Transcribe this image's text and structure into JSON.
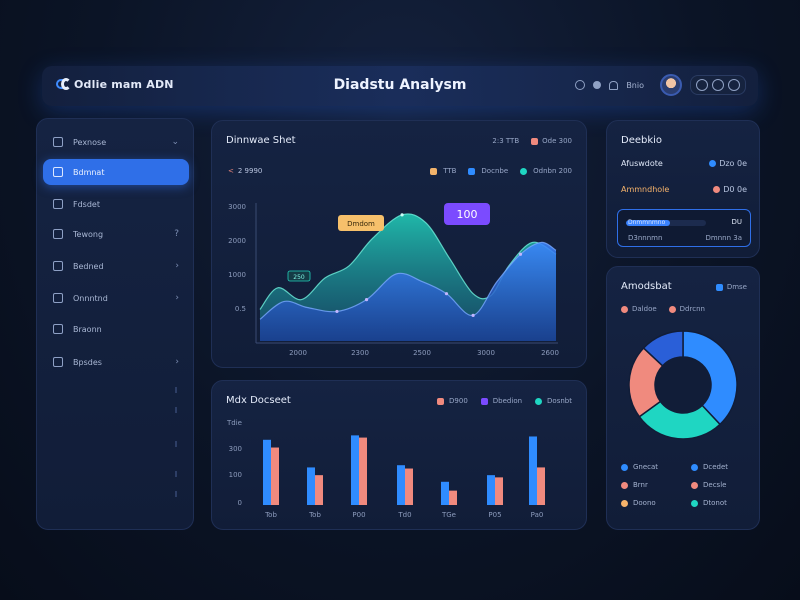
{
  "header": {
    "brand": "Odlie mam ADN",
    "title": "Diadstu Analysm",
    "tool_label": "Bnio"
  },
  "sidebar": {
    "items": [
      {
        "label": "Pexnose",
        "chevron": "⌄",
        "active": false
      },
      {
        "label": "Bdmnat",
        "chevron": "",
        "active": true
      },
      {
        "label": "Fdsdet",
        "chevron": "",
        "active": false
      },
      {
        "label": "Tewong",
        "chevron": "?",
        "active": false
      },
      {
        "label": "Bedned",
        "chevron": "›",
        "active": false
      },
      {
        "label": "Onnntnd",
        "chevron": "›",
        "active": false
      },
      {
        "label": "Braonn",
        "chevron": "",
        "active": false
      },
      {
        "label": "Bpsdes",
        "chevron": "›",
        "active": false
      }
    ]
  },
  "top_chart": {
    "title": "Dinnwae Shet",
    "header_legend": [
      {
        "label": "2:3  TTB",
        "color": "#9aa9c8"
      },
      {
        "label": "Ode 300",
        "color": "#f08a7e"
      }
    ],
    "stat": "2 9990",
    "legend": [
      {
        "label": "TTB",
        "color": "#f2b36b"
      },
      {
        "label": "Docnbe",
        "color": "#2f8cff"
      },
      {
        "label": "Odnbn 200",
        "color": "#1fd6c2"
      }
    ],
    "callout_tag": "Dmdom",
    "callout_value": "100",
    "marker_label": "250",
    "colors": {
      "blue": "#2f7df0",
      "teal": "#1fc7b4",
      "purple": "#7b4bff",
      "orange": "#f6c06b"
    }
  },
  "bottom_chart": {
    "title": "Mdx Docseet",
    "legend": [
      {
        "label": "D900",
        "color": "#f08a7e"
      },
      {
        "label": "Dbedion",
        "color": "#7b4bff"
      },
      {
        "label": "Dosnbt",
        "color": "#1fd6c2"
      }
    ]
  },
  "right_top": {
    "title": "Deebkio",
    "rows": [
      {
        "label": "Afuswdote",
        "value": "Dzo 0e",
        "label_color": "#dfe7f7",
        "dot": "#2f8cff"
      },
      {
        "label": "Ammndhole",
        "value": "D0 0e",
        "label_color": "#f6b36b",
        "dot": "#f08a7e"
      }
    ],
    "progress": {
      "value": 0.55,
      "left_text": "Dnmmnmno",
      "right_text": "DU",
      "sub_left": "D3nnnmn",
      "sub_right": "Dmnnn 3a"
    }
  },
  "right_bottom": {
    "title": "Amodsbat",
    "header_legend": "Dmse",
    "sub_legend": [
      {
        "label": "Daldoe",
        "color": "#f08a7e"
      },
      {
        "label": "Ddrcnn",
        "color": "#f08a7e"
      }
    ],
    "legend": [
      {
        "label": "Gnecat",
        "color": "#2f8cff"
      },
      {
        "label": "Dcedet",
        "color": "#2f8cff"
      },
      {
        "label": "Brnr",
        "color": "#f08a7e"
      },
      {
        "label": "Decsle",
        "color": "#f08a7e"
      },
      {
        "label": "Doono",
        "color": "#f6b36b"
      },
      {
        "label": "Dtonot",
        "color": "#1fd6c2"
      }
    ]
  },
  "chart_data": [
    {
      "type": "area",
      "title": "Dinnwae Shet",
      "x": [
        "2000",
        "2300",
        "2500",
        "3000",
        "2600"
      ],
      "ylabels": [
        "3000",
        "2000",
        "1000",
        "0.5"
      ],
      "ylim": [
        0,
        3500
      ],
      "series": [
        {
          "name": "Odnbn 200",
          "points": [
            [
              0,
              0.8
            ],
            [
              0.06,
              1.35
            ],
            [
              0.14,
              1.05
            ],
            [
              0.22,
              1.6
            ],
            [
              0.3,
              1.9
            ],
            [
              0.38,
              2.6
            ],
            [
              0.48,
              3.2
            ],
            [
              0.56,
              3.0
            ],
            [
              0.64,
              2.1
            ],
            [
              0.72,
              1.2
            ],
            [
              0.78,
              1.15
            ],
            [
              0.84,
              1.9
            ],
            [
              0.92,
              2.5
            ],
            [
              1.0,
              2.2
            ]
          ]
        },
        {
          "name": "Docnbe",
          "points": [
            [
              0,
              0.55
            ],
            [
              0.08,
              1.0
            ],
            [
              0.16,
              0.85
            ],
            [
              0.26,
              0.75
            ],
            [
              0.36,
              1.05
            ],
            [
              0.46,
              1.7
            ],
            [
              0.55,
              1.5
            ],
            [
              0.63,
              1.2
            ],
            [
              0.72,
              0.65
            ],
            [
              0.8,
              1.5
            ],
            [
              0.88,
              2.2
            ],
            [
              0.95,
              2.5
            ],
            [
              1.0,
              2.3
            ]
          ]
        }
      ],
      "grid": false,
      "legend_position": "top-right"
    },
    {
      "type": "bar",
      "title": "Mdx Docseet",
      "categories": [
        "Tob",
        "Tob",
        "P00",
        "Td0",
        "TGe",
        "P05",
        "Pa0"
      ],
      "ylabels": [
        "Tdie",
        "300",
        "100",
        "0"
      ],
      "ylim": [
        0,
        380
      ],
      "series": [
        {
          "name": "Dosnbt",
          "values": [
            295,
            170,
            315,
            180,
            105,
            135,
            310
          ]
        },
        {
          "name": "D900",
          "values": [
            260,
            135,
            305,
            165,
            65,
            125,
            170
          ]
        }
      ],
      "legend_position": "top-right"
    },
    {
      "type": "pie",
      "title": "Amodsbat",
      "categories": [
        "Gnecat",
        "Dtonot",
        "Brnr",
        "Dcedet"
      ],
      "values": [
        38,
        27,
        22,
        13
      ],
      "colors": [
        "#2f8cff",
        "#1fd6c2",
        "#f08a7e",
        "#2a5fd8"
      ]
    }
  ]
}
